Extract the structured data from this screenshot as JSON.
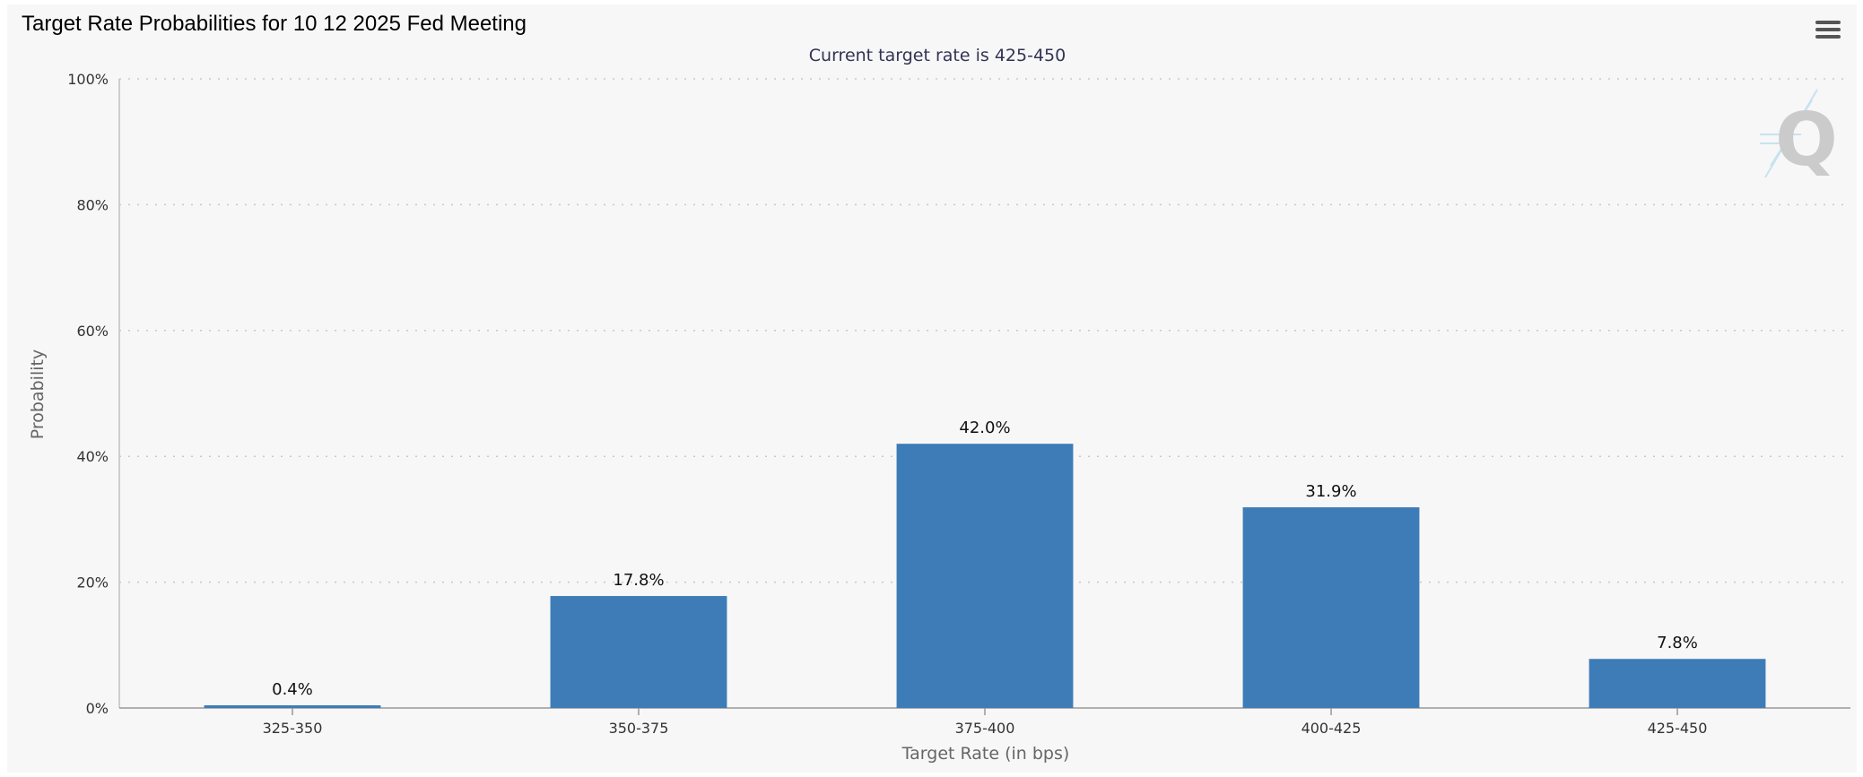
{
  "chart_data": {
    "type": "bar",
    "title": "Target Rate Probabilities for 10 12 2025 Fed Meeting",
    "subtitle": "Current target rate is 425-450",
    "xlabel": "Target Rate (in bps)",
    "ylabel": "Probability",
    "categories": [
      "325-350",
      "350-375",
      "375-400",
      "400-425",
      "425-450"
    ],
    "values": [
      0.4,
      17.8,
      42.0,
      31.9,
      7.8
    ],
    "data_labels": [
      "0.4%",
      "17.8%",
      "42.0%",
      "31.9%",
      "7.8%"
    ],
    "ylim": [
      0,
      100
    ],
    "y_ticks": [
      0,
      20,
      40,
      60,
      80,
      100
    ],
    "y_tick_labels": [
      "0%",
      "20%",
      "40%",
      "60%",
      "80%",
      "100%"
    ],
    "grid": true,
    "legend": "none",
    "bar_color": "#3e7cb8"
  },
  "toolbar": {
    "menu_icon": "hamburger-menu-icon"
  },
  "watermark": {
    "icon": "q-logo-icon"
  }
}
